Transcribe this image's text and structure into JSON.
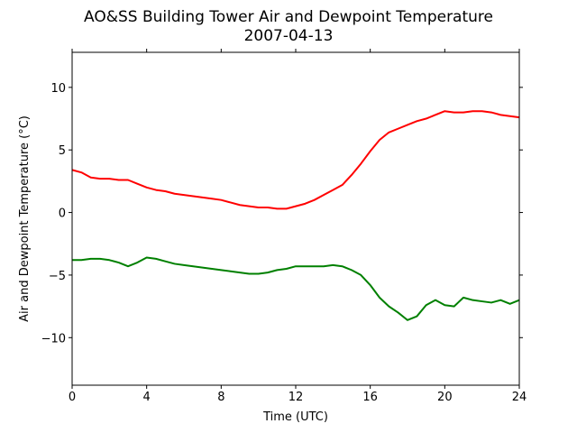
{
  "chart_data": {
    "type": "line",
    "title": "AO&SS Building Tower Air and Dewpoint Temperature",
    "subtitle": "2007-04-13",
    "xlabel": "Time (UTC)",
    "ylabel": "Air and Dewpoint Temperature (°C)",
    "xlim": [
      0,
      24
    ],
    "ylim": [
      -13.8,
      12.8
    ],
    "xticks": [
      0,
      4,
      8,
      12,
      16,
      20,
      24
    ],
    "yticks": [
      -10,
      -5,
      0,
      5,
      10
    ],
    "grid": false,
    "legend": "none",
    "series": [
      {
        "color": "#ff0000",
        "x": [
          0,
          0.5,
          1,
          1.5,
          2,
          2.5,
          3,
          3.5,
          4,
          4.5,
          5,
          5.5,
          6,
          6.5,
          7,
          7.5,
          8,
          8.5,
          9,
          9.5,
          10,
          10.5,
          11,
          11.5,
          12,
          12.5,
          13,
          13.5,
          14,
          14.5,
          15,
          15.5,
          16,
          16.5,
          17,
          17.5,
          18,
          18.5,
          19,
          19.5,
          20,
          20.5,
          21,
          21.5,
          22,
          22.5,
          23,
          23.5,
          24
        ],
        "y": [
          3.4,
          3.2,
          2.8,
          2.7,
          2.7,
          2.6,
          2.6,
          2.3,
          2.0,
          1.8,
          1.7,
          1.5,
          1.4,
          1.3,
          1.2,
          1.1,
          1.0,
          0.8,
          0.6,
          0.5,
          0.4,
          0.4,
          0.3,
          0.3,
          0.5,
          0.7,
          1.0,
          1.4,
          1.8,
          2.2,
          3.0,
          3.9,
          4.9,
          5.8,
          6.4,
          6.7,
          7.0,
          7.3,
          7.5,
          7.8,
          8.1,
          8.0,
          8.0,
          8.1,
          8.1,
          8.0,
          7.8,
          7.7,
          7.6
        ]
      },
      {
        "color": "#008000",
        "x": [
          0,
          0.5,
          1,
          1.5,
          2,
          2.5,
          3,
          3.5,
          4,
          4.5,
          5,
          5.5,
          6,
          6.5,
          7,
          7.5,
          8,
          8.5,
          9,
          9.5,
          10,
          10.5,
          11,
          11.5,
          12,
          12.5,
          13,
          13.5,
          14,
          14.5,
          15,
          15.5,
          16,
          16.5,
          17,
          17.5,
          18,
          18.5,
          19,
          19.5,
          20,
          20.5,
          21,
          21.5,
          22,
          22.5,
          23,
          23.5,
          24
        ],
        "y": [
          -3.8,
          -3.8,
          -3.7,
          -3.7,
          -3.8,
          -4.0,
          -4.3,
          -4.0,
          -3.6,
          -3.7,
          -3.9,
          -4.1,
          -4.2,
          -4.3,
          -4.4,
          -4.5,
          -4.6,
          -4.7,
          -4.8,
          -4.9,
          -4.9,
          -4.8,
          -4.6,
          -4.5,
          -4.3,
          -4.3,
          -4.3,
          -4.3,
          -4.2,
          -4.3,
          -4.6,
          -5.0,
          -5.8,
          -6.8,
          -7.5,
          -8.0,
          -8.6,
          -8.3,
          -7.4,
          -7.0,
          -7.4,
          -7.5,
          -6.8,
          -7.0,
          -7.1,
          -7.2,
          -7.0,
          -7.3,
          -7.0
        ]
      }
    ]
  }
}
